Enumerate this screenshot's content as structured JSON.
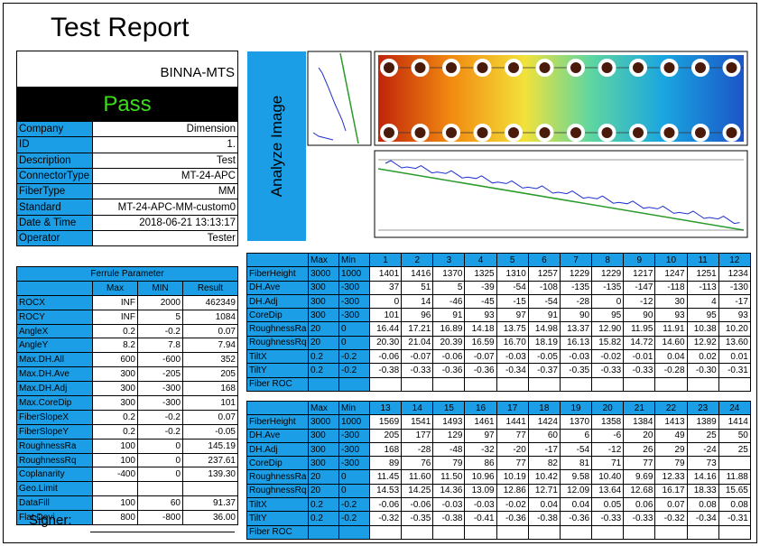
{
  "title": "Test Report",
  "device_name": "BINNA-MTS",
  "result": "Pass",
  "info": [
    [
      "Company",
      "Dimension"
    ],
    [
      "ID",
      "1."
    ],
    [
      "Description",
      "Test"
    ],
    [
      "ConnectorType",
      "MT-24-APC"
    ],
    [
      "FiberType",
      "MM"
    ],
    [
      "Standard",
      "MT-24-APC-MM-custom0"
    ],
    [
      "Date & Time",
      "2018-06-21 13:13:17"
    ],
    [
      "Operator",
      "Tester"
    ]
  ],
  "analyze_label": "Analyze Image",
  "ferrule": {
    "title": "Ferrule Parameter",
    "headers": [
      "",
      "Max",
      "MIN",
      "Result"
    ],
    "rows": [
      [
        "ROCX",
        "INF",
        "2000",
        "462349"
      ],
      [
        "ROCY",
        "INF",
        "5",
        "1084"
      ],
      [
        "AngleX",
        "0.2",
        "-0.2",
        "0.07"
      ],
      [
        "AngleY",
        "8.2",
        "7.8",
        "7.94"
      ],
      [
        "Max.DH.All",
        "600",
        "-600",
        "352"
      ],
      [
        "Max.DH.Ave",
        "300",
        "-205",
        "205"
      ],
      [
        "Max.DH.Adj",
        "300",
        "-300",
        "168"
      ],
      [
        "Max.CoreDip",
        "300",
        "-300",
        "101"
      ],
      [
        "FiberSlopeX",
        "0.2",
        "-0.2",
        "0.07"
      ],
      [
        "FiberSlopeY",
        "0.2",
        "-0.2",
        "-0.05"
      ],
      [
        "RoughnessRa",
        "100",
        "0",
        "145.19"
      ],
      [
        "RoughnessRq",
        "100",
        "0",
        "237.61"
      ],
      [
        "Coplanarity",
        "-400",
        "0",
        "139.30"
      ],
      [
        "Geo.Limit",
        "",
        "",
        ""
      ],
      [
        "DataFill",
        "100",
        "60",
        "91.37"
      ],
      [
        "Flat.Devi",
        "800",
        "-800",
        "36.00"
      ]
    ]
  },
  "fiber_table_1": {
    "headers": [
      "",
      "Max",
      "Min",
      "1",
      "2",
      "3",
      "4",
      "5",
      "6",
      "7",
      "8",
      "9",
      "10",
      "11",
      "12"
    ],
    "rows": [
      [
        "FiberHeight",
        "3000",
        "1000",
        "1401",
        "1416",
        "1370",
        "1325",
        "1310",
        "1257",
        "1229",
        "1229",
        "1217",
        "1247",
        "1251",
        "1234"
      ],
      [
        "DH.Ave",
        "300",
        "-300",
        "37",
        "51",
        "5",
        "-39",
        "-54",
        "-108",
        "-135",
        "-135",
        "-147",
        "-118",
        "-113",
        "-130"
      ],
      [
        "DH.Adj",
        "300",
        "-300",
        "0",
        "14",
        "-46",
        "-45",
        "-15",
        "-54",
        "-28",
        "0",
        "-12",
        "30",
        "4",
        "-17"
      ],
      [
        "CoreDip",
        "300",
        "-300",
        "101",
        "96",
        "91",
        "93",
        "97",
        "91",
        "90",
        "95",
        "90",
        "93",
        "95",
        "93"
      ],
      [
        "RoughnessRa",
        "20",
        "0",
        "16.44",
        "17.21",
        "16.89",
        "14.18",
        "13.75",
        "14.98",
        "13.37",
        "12.90",
        "11.95",
        "11.91",
        "10.38",
        "10.20"
      ],
      [
        "RoughnessRq",
        "20",
        "0",
        "20.30",
        "21.04",
        "20.39",
        "16.59",
        "16.70",
        "18.19",
        "16.13",
        "15.82",
        "14.72",
        "14.60",
        "12.92",
        "13.60"
      ],
      [
        "TiltX",
        "0.2",
        "-0.2",
        "-0.06",
        "-0.07",
        "-0.06",
        "-0.07",
        "-0.03",
        "-0.05",
        "-0.03",
        "-0.02",
        "-0.01",
        "0.04",
        "0.02",
        "0.01"
      ],
      [
        "TiltY",
        "0.2",
        "-0.2",
        "-0.38",
        "-0.33",
        "-0.36",
        "-0.36",
        "-0.34",
        "-0.37",
        "-0.35",
        "-0.33",
        "-0.33",
        "-0.28",
        "-0.30",
        "-0.31"
      ],
      [
        "Fiber ROC",
        "",
        "",
        "",
        "",
        "",
        "",
        "",
        "",
        "",
        "",
        "",
        "",
        "",
        ""
      ]
    ]
  },
  "fiber_table_2": {
    "headers": [
      "",
      "Max",
      "Min",
      "13",
      "14",
      "15",
      "16",
      "17",
      "18",
      "19",
      "20",
      "21",
      "22",
      "23",
      "24"
    ],
    "rows": [
      [
        "FiberHeight",
        "3000",
        "1000",
        "1569",
        "1541",
        "1493",
        "1461",
        "1441",
        "1424",
        "1370",
        "1358",
        "1384",
        "1413",
        "1389",
        "1414"
      ],
      [
        "DH.Ave",
        "300",
        "-300",
        "205",
        "177",
        "129",
        "97",
        "77",
        "60",
        "6",
        "-6",
        "20",
        "49",
        "25",
        "50"
      ],
      [
        "DH.Adj",
        "300",
        "-300",
        "168",
        "-28",
        "-48",
        "-32",
        "-20",
        "-17",
        "-54",
        "-12",
        "26",
        "29",
        "-24",
        "25"
      ],
      [
        "CoreDip",
        "300",
        "-300",
        "89",
        "76",
        "79",
        "86",
        "77",
        "82",
        "81",
        "71",
        "77",
        "79",
        "73",
        ""
      ],
      [
        "RoughnessRa",
        "20",
        "0",
        "11.45",
        "11.60",
        "11.50",
        "10.96",
        "10.19",
        "10.42",
        "9.58",
        "10.40",
        "9.69",
        "12.33",
        "14.16",
        "11.88"
      ],
      [
        "RoughnessRq",
        "20",
        "0",
        "14.53",
        "14.25",
        "14.36",
        "13.09",
        "12.86",
        "12.71",
        "12.09",
        "13.64",
        "12.68",
        "16.17",
        "18.33",
        "15.65"
      ],
      [
        "TiltX",
        "0.2",
        "-0.2",
        "-0.06",
        "-0.06",
        "-0.03",
        "-0.03",
        "-0.02",
        "0.04",
        "0.04",
        "0.05",
        "0.06",
        "0.07",
        "0.08",
        "0.08"
      ],
      [
        "TiltY",
        "0.2",
        "-0.2",
        "-0.32",
        "-0.35",
        "-0.38",
        "-0.41",
        "-0.36",
        "-0.38",
        "-0.36",
        "-0.33",
        "-0.33",
        "-0.32",
        "-0.34",
        "-0.31"
      ],
      [
        "Fiber ROC",
        "",
        "",
        "",
        "",
        "",
        "",
        "",
        "",
        "",
        "",
        "",
        "",
        "",
        ""
      ]
    ]
  },
  "signer_label": "Signer:",
  "colors": {
    "accent": "#1b9ee5",
    "pass": "#3cdc1c"
  }
}
